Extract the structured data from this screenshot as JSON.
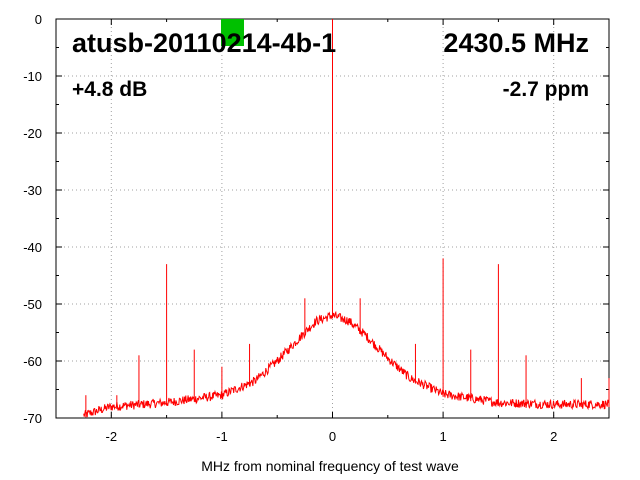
{
  "chart_data": {
    "type": "line",
    "xlabel": "MHz from nominal frequency of test wave",
    "ylabel": "",
    "xlim": [
      -2.5,
      2.5
    ],
    "ylim": [
      -70,
      0
    ],
    "xticks": [
      -2,
      -1,
      0,
      1,
      2
    ],
    "yticks": [
      0,
      -10,
      -20,
      -30,
      -40,
      -50,
      -60,
      -70
    ],
    "grid": true,
    "annotations": {
      "device": "atusb-20110214-4b-1",
      "frequency": "2430.5 MHz",
      "gain": "+4.8 dB",
      "offset": "-2.7 ppm"
    },
    "marker_color": "#00c000",
    "series": [
      {
        "color": "#ff0000",
        "noise_floor": {
          "x": [
            -2.25,
            -2.0,
            -1.5,
            -1.0,
            -0.7,
            -0.5,
            -0.3,
            -0.15,
            0.0,
            0.15,
            0.3,
            0.5,
            0.7,
            1.0,
            1.5,
            2.0,
            2.5
          ],
          "y": [
            -69.5,
            -68.0,
            -67.3,
            -66.0,
            -63.5,
            -60.0,
            -56.0,
            -53.0,
            -52.0,
            -53.0,
            -55.5,
            -59.5,
            -63.0,
            -65.8,
            -67.3,
            -67.6,
            -67.6
          ]
        },
        "spurs": {
          "x": [
            -2.23,
            -1.95,
            -1.75,
            -1.5,
            -1.25,
            -1.0,
            -0.75,
            -0.25,
            0.0,
            0.0,
            0.25,
            0.75,
            1.0,
            1.25,
            1.5,
            1.75,
            2.25,
            2.5
          ],
          "y": [
            -66,
            -66,
            -59,
            -43,
            -58,
            -61,
            -57,
            -49,
            0,
            -41,
            -49,
            -57,
            -42,
            -58,
            -43,
            -59,
            -63,
            -63
          ]
        }
      }
    ]
  }
}
